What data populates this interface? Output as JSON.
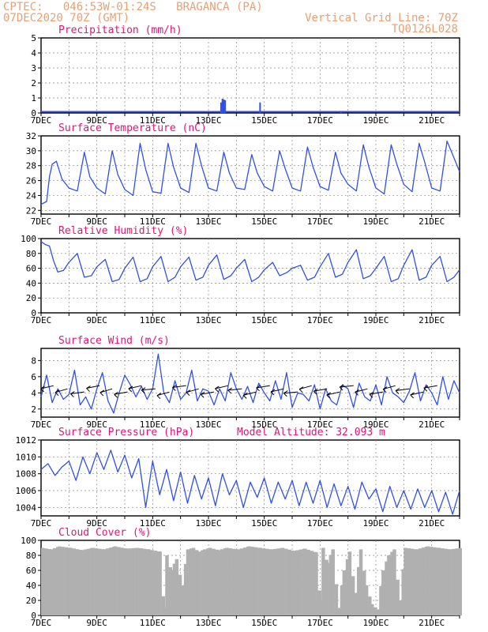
{
  "header": {
    "line1": "CPTEC:   046:53W-01:24S   BRAGANCA (PA)",
    "line2": "07DEC2020 70Z (GMT)",
    "right1": "Vertical Grid Line: 70Z",
    "right2": "TQ0126L028"
  },
  "colors": {
    "header": "#e8a070",
    "title": "#e0147a",
    "line": "#3050e8",
    "cloud": "#b0b0b0",
    "axis": "#000000"
  },
  "x_ticks": [
    "7DEC",
    "9DEC",
    "11DEC",
    "13DEC",
    "15DEC",
    "17DEC",
    "19DEC",
    "21DEC"
  ],
  "chart_data": [
    {
      "id": "precip",
      "type": "bar",
      "title": "Precipitation (mm/h)",
      "ylim": [
        0,
        5
      ],
      "yticks": [
        "0",
        "1",
        "2",
        "3",
        "4",
        "5"
      ],
      "x_range_days": [
        7,
        22
      ],
      "grid": true,
      "x": [
        13.45,
        13.5,
        13.55,
        13.6,
        14.85,
        17.75
      ],
      "values": [
        0.7,
        0.95,
        0.9,
        0.85,
        0.7,
        0.1
      ]
    },
    {
      "id": "temp",
      "type": "line",
      "title": "Surface Temperature (nC)",
      "ylim": [
        21.5,
        32
      ],
      "yticks": [
        "22",
        "24",
        "26",
        "28",
        "30",
        "32"
      ],
      "x_range_days": [
        7,
        22
      ],
      "grid": true,
      "x": [
        7.0,
        7.2,
        7.3,
        7.4,
        7.55,
        7.75,
        8.0,
        8.3,
        8.55,
        8.75,
        9.0,
        9.3,
        9.55,
        9.75,
        10.0,
        10.3,
        10.55,
        10.75,
        11.0,
        11.3,
        11.55,
        11.75,
        12.0,
        12.3,
        12.55,
        12.75,
        13.0,
        13.3,
        13.55,
        13.75,
        14.0,
        14.3,
        14.55,
        14.75,
        15.0,
        15.3,
        15.55,
        15.75,
        16.0,
        16.3,
        16.55,
        16.75,
        17.0,
        17.3,
        17.55,
        17.75,
        18.0,
        18.3,
        18.55,
        18.75,
        19.0,
        19.3,
        19.55,
        19.75,
        20.0,
        20.3,
        20.55,
        20.75,
        21.0,
        21.3,
        21.55,
        21.75,
        22.0
      ],
      "values": [
        22.8,
        23.2,
        26.5,
        28.2,
        28.6,
        26.2,
        25.0,
        24.6,
        29.8,
        26.5,
        25.0,
        24.2,
        30.0,
        26.8,
        24.8,
        24.0,
        31.0,
        27.5,
        24.5,
        24.3,
        31.0,
        27.8,
        25.0,
        24.4,
        31.0,
        28.0,
        25.0,
        24.6,
        29.8,
        27.0,
        25.0,
        24.8,
        29.5,
        27.0,
        25.2,
        24.6,
        30.0,
        27.6,
        25.0,
        24.6,
        30.5,
        27.8,
        25.2,
        24.7,
        29.8,
        27.0,
        25.5,
        24.6,
        30.8,
        27.8,
        25.0,
        24.2,
        30.8,
        28.2,
        25.5,
        24.5,
        31.0,
        28.5,
        25.0,
        24.6,
        31.3,
        29.5,
        27.2
      ]
    },
    {
      "id": "rh",
      "type": "line",
      "title": "Relative Humidity (%)",
      "ylim": [
        0,
        100
      ],
      "yticks": [
        "0",
        "20",
        "40",
        "60",
        "80",
        "100"
      ],
      "x_range_days": [
        7,
        22
      ],
      "grid": true,
      "x": [
        7.0,
        7.15,
        7.3,
        7.45,
        7.6,
        7.8,
        8.0,
        8.3,
        8.55,
        8.8,
        9.0,
        9.3,
        9.55,
        9.8,
        10.0,
        10.3,
        10.55,
        10.8,
        11.0,
        11.3,
        11.55,
        11.8,
        12.0,
        12.3,
        12.55,
        12.8,
        13.0,
        13.3,
        13.55,
        13.8,
        14.0,
        14.3,
        14.55,
        14.8,
        15.0,
        15.3,
        15.55,
        15.8,
        16.0,
        16.3,
        16.55,
        16.8,
        17.0,
        17.3,
        17.55,
        17.8,
        18.0,
        18.3,
        18.55,
        18.8,
        19.0,
        19.3,
        19.55,
        19.8,
        20.0,
        20.3,
        20.55,
        20.8,
        21.0,
        21.3,
        21.55,
        21.8,
        22.0
      ],
      "values": [
        96,
        92,
        90,
        70,
        55,
        57,
        68,
        80,
        48,
        50,
        62,
        72,
        42,
        45,
        60,
        75,
        42,
        46,
        62,
        76,
        42,
        48,
        62,
        75,
        44,
        48,
        64,
        78,
        45,
        50,
        60,
        72,
        42,
        48,
        58,
        68,
        50,
        54,
        60,
        64,
        44,
        48,
        62,
        80,
        48,
        52,
        68,
        85,
        46,
        50,
        60,
        76,
        42,
        46,
        64,
        85,
        44,
        48,
        64,
        76,
        42,
        48,
        58
      ]
    },
    {
      "id": "wind",
      "type": "line",
      "title": "Surface Wind (m/s)",
      "ylim": [
        1,
        9.5
      ],
      "yticks": [
        "2",
        "4",
        "6",
        "8"
      ],
      "x_range_days": [
        7,
        22
      ],
      "grid": true,
      "x": [
        7.0,
        7.2,
        7.4,
        7.6,
        7.8,
        8.0,
        8.2,
        8.4,
        8.6,
        8.8,
        9.0,
        9.2,
        9.4,
        9.6,
        9.8,
        10.0,
        10.2,
        10.4,
        10.6,
        10.8,
        11.0,
        11.2,
        11.4,
        11.6,
        11.8,
        12.0,
        12.2,
        12.4,
        12.6,
        12.8,
        13.0,
        13.2,
        13.4,
        13.6,
        13.8,
        14.0,
        14.2,
        14.4,
        14.6,
        14.8,
        15.0,
        15.2,
        15.4,
        15.6,
        15.8,
        16.0,
        16.2,
        16.4,
        16.6,
        16.8,
        17.0,
        17.2,
        17.4,
        17.6,
        17.8,
        18.0,
        18.2,
        18.4,
        18.6,
        18.8,
        19.0,
        19.2,
        19.4,
        19.6,
        19.8,
        20.0,
        20.2,
        20.4,
        20.6,
        20.8,
        21.0,
        21.2,
        21.4,
        21.6,
        21.8,
        22.0
      ],
      "values": [
        3.5,
        6.2,
        2.8,
        4.5,
        3.2,
        3.8,
        6.8,
        2.5,
        3.5,
        2.0,
        4.5,
        6.5,
        3.0,
        1.5,
        4.0,
        6.2,
        5.0,
        3.5,
        4.8,
        3.2,
        4.5,
        8.8,
        4.0,
        2.8,
        5.5,
        3.2,
        4.0,
        6.8,
        3.0,
        4.5,
        4.2,
        2.5,
        4.5,
        3.0,
        6.5,
        4.5,
        3.2,
        4.8,
        2.8,
        5.2,
        4.0,
        3.0,
        5.5,
        3.2,
        6.5,
        2.2,
        4.0,
        3.8,
        3.0,
        5.0,
        2.0,
        4.5,
        3.0,
        2.5,
        5.0,
        4.5,
        2.2,
        5.2,
        3.5,
        3.0,
        5.0,
        2.5,
        6.0,
        4.0,
        3.5,
        2.8,
        4.2,
        6.5,
        3.0,
        5.0,
        4.0,
        2.5,
        6.0,
        3.2,
        5.5,
        4.0
      ],
      "arrows_x": [
        7.45,
        7.95,
        8.55,
        9.1,
        9.55,
        10.1,
        10.6,
        11.1,
        11.6,
        12.2,
        12.65,
        13.2,
        13.7,
        14.2,
        14.7,
        15.2,
        15.7,
        16.2,
        16.7,
        17.25,
        17.7,
        18.2,
        18.7,
        19.25,
        19.7,
        20.2,
        20.7,
        21.2
      ],
      "arrows_dir": [
        155,
        150,
        165,
        158,
        148,
        160,
        155,
        170,
        150,
        165,
        150,
        160,
        155,
        168,
        152,
        162,
        155,
        170,
        150,
        160,
        155,
        168,
        152,
        160,
        150,
        165,
        155,
        160
      ]
    },
    {
      "id": "pressure",
      "type": "line",
      "title": "Surface Pressure (hPa)",
      "annotation": "Model Altitude: 32.093 m",
      "ylim": [
        1003,
        1012
      ],
      "yticks": [
        "1004",
        "1006",
        "1008",
        "1010",
        "1012"
      ],
      "x_range_days": [
        7,
        22
      ],
      "grid": true,
      "x": [
        7.0,
        7.25,
        7.5,
        7.75,
        8.0,
        8.25,
        8.5,
        8.75,
        9.0,
        9.25,
        9.5,
        9.75,
        10.0,
        10.25,
        10.5,
        10.75,
        11.0,
        11.25,
        11.5,
        11.75,
        12.0,
        12.25,
        12.5,
        12.75,
        13.0,
        13.25,
        13.5,
        13.75,
        14.0,
        14.25,
        14.5,
        14.75,
        15.0,
        15.25,
        15.5,
        15.75,
        16.0,
        16.25,
        16.5,
        16.75,
        17.0,
        17.25,
        17.5,
        17.75,
        18.0,
        18.25,
        18.5,
        18.75,
        19.0,
        19.25,
        19.5,
        19.75,
        20.0,
        20.25,
        20.5,
        20.75,
        21.0,
        21.25,
        21.5,
        21.75,
        22.0
      ],
      "values": [
        1008.5,
        1009.2,
        1007.8,
        1008.8,
        1009.5,
        1007.2,
        1010.0,
        1008.0,
        1010.5,
        1008.5,
        1010.8,
        1008.2,
        1010.2,
        1007.5,
        1009.8,
        1004.0,
        1009.5,
        1005.5,
        1008.5,
        1004.8,
        1008.2,
        1004.5,
        1007.8,
        1005.0,
        1007.5,
        1004.2,
        1008.0,
        1005.5,
        1007.2,
        1004.0,
        1007.0,
        1005.2,
        1007.5,
        1004.5,
        1007.0,
        1005.0,
        1007.2,
        1004.2,
        1007.0,
        1004.5,
        1007.2,
        1004.0,
        1006.8,
        1004.2,
        1006.5,
        1003.8,
        1007.0,
        1005.0,
        1006.2,
        1003.5,
        1006.5,
        1004.0,
        1006.0,
        1003.8,
        1006.2,
        1004.0,
        1006.0,
        1003.5,
        1005.8,
        1003.2,
        1006.0
      ]
    },
    {
      "id": "cloud",
      "type": "area",
      "title": "Cloud Cover (%)",
      "ylim": [
        0,
        100
      ],
      "yticks": [
        "0",
        "20",
        "40",
        "60",
        "80",
        "100"
      ],
      "x_range_days": [
        7,
        22
      ],
      "grid": true,
      "x": [
        7.0,
        7.3,
        7.6,
        8.0,
        8.4,
        8.8,
        9.2,
        9.6,
        10.0,
        10.4,
        10.8,
        11.2,
        11.35,
        11.45,
        11.6,
        11.8,
        12.0,
        12.2,
        12.4,
        12.6,
        12.8,
        13.0,
        13.3,
        13.6,
        14.0,
        14.4,
        14.8,
        15.2,
        15.6,
        16.0,
        16.4,
        16.8,
        16.95,
        17.05,
        17.2,
        17.4,
        17.6,
        17.8,
        18.0,
        18.2,
        18.4,
        18.6,
        18.8,
        19.0,
        19.2,
        19.4,
        19.6,
        19.8,
        20.0,
        20.4,
        20.8,
        21.2,
        21.6,
        22.0
      ],
      "values": [
        90,
        88,
        92,
        90,
        87,
        90,
        88,
        92,
        89,
        90,
        88,
        85,
        10,
        80,
        60,
        75,
        40,
        88,
        90,
        85,
        88,
        90,
        87,
        90,
        88,
        92,
        90,
        88,
        90,
        86,
        89,
        84,
        20,
        90,
        70,
        88,
        10,
        60,
        85,
        30,
        88,
        40,
        15,
        8,
        60,
        80,
        88,
        20,
        90,
        88,
        92,
        90,
        88,
        90
      ]
    }
  ]
}
